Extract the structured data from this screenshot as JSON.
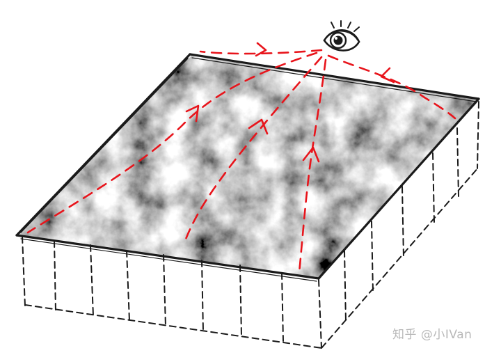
{
  "watermark": {
    "text": "知乎 @小IVan"
  },
  "colors": {
    "ray": "#e8141b",
    "ink": "#1a1a1a",
    "watermark": "#b8b8b8"
  },
  "elements": {
    "eye": "eye-icon",
    "surface": "noise-heightmap-surface",
    "volume": "dashed-volume-box"
  }
}
